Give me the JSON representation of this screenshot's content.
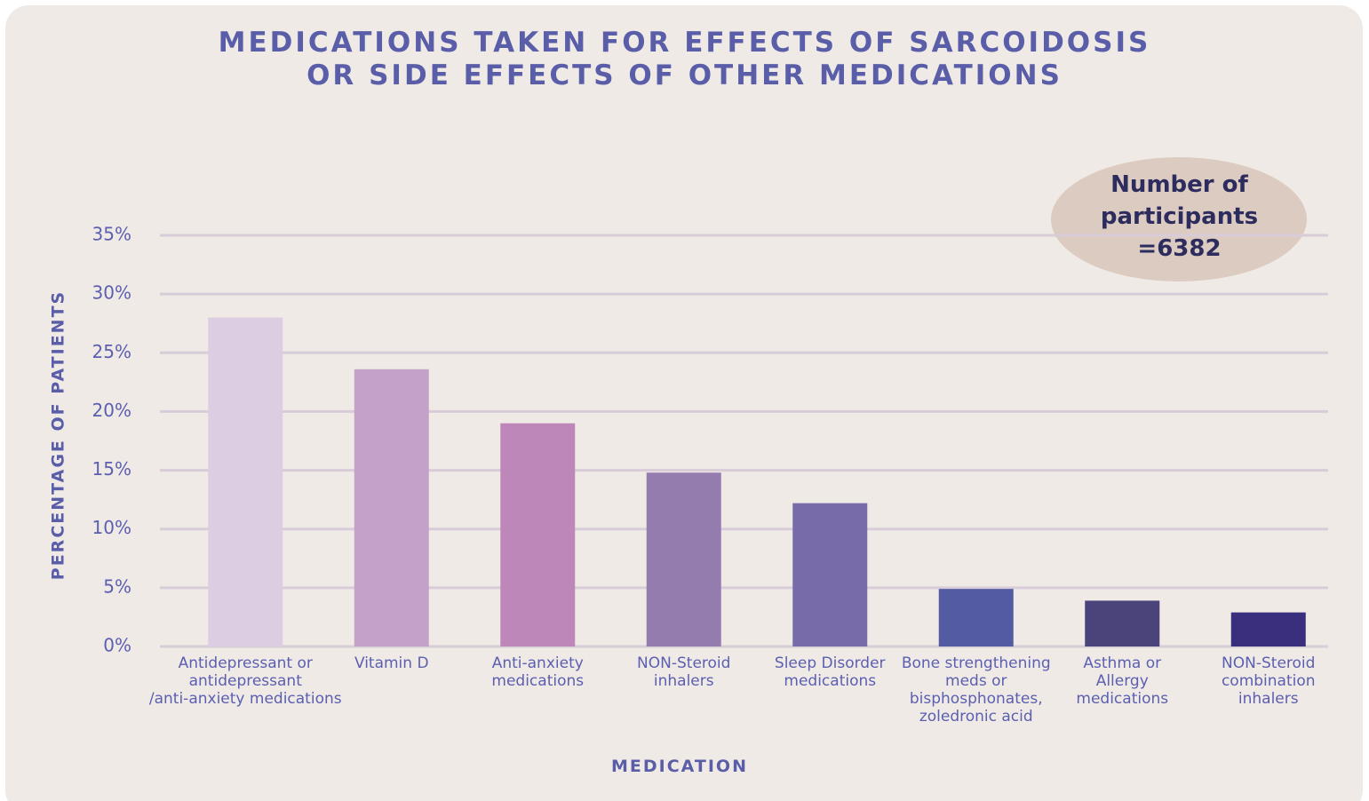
{
  "chart_data": {
    "type": "bar",
    "title": "MEDICATIONS TAKEN FOR EFFECTS OF SARCOIDOSIS\nOR SIDE EFFECTS OF OTHER MEDICATIONS",
    "x_label": "MEDICATION",
    "y_label": "PERCENTAGE OF PATIENTS",
    "annotation": "Number of\nparticipants\n=6382",
    "categories": [
      "Antidepressant or\nantidepressant\n/anti-anxiety medications",
      "Vitamin D",
      "Anti-anxiety\nmedications",
      "NON-Steroid\ninhalers",
      "Sleep Disorder\nmedications",
      "Bone strengthening\nmeds or\nbisphosphonates,\nzoledronic acid",
      "Asthma or\nAllergy\nmedications",
      "NON-Steroid\ncombination\ninhalers"
    ],
    "values": [
      28.0,
      23.6,
      19.0,
      14.8,
      12.2,
      4.9,
      3.9,
      2.9
    ],
    "colors": [
      "#dccde2",
      "#c4a2c8",
      "#be87b9",
      "#957caf",
      "#776ca9",
      "#535ca3",
      "#4a447a",
      "#3a2f7c"
    ],
    "ylim": [
      0,
      35
    ],
    "yticks": [
      {
        "value": 0,
        "label": "0%"
      },
      {
        "value": 5,
        "label": "5%"
      },
      {
        "value": 10,
        "label": "10%"
      },
      {
        "value": 15,
        "label": "15%"
      },
      {
        "value": 20,
        "label": "20%"
      },
      {
        "value": 25,
        "label": "25%"
      },
      {
        "value": 30,
        "label": "30%"
      },
      {
        "value": 35,
        "label": "35%"
      }
    ],
    "grid": true
  }
}
